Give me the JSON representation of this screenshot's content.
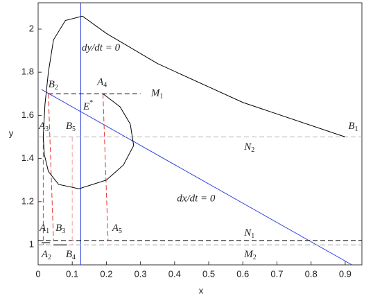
{
  "chart_data": {
    "type": "line",
    "x_label": "x",
    "y_label": "y",
    "xlim": [
      0,
      0.949
    ],
    "ylim": [
      0.907,
      2.122
    ],
    "xticks": [
      0,
      0.1,
      0.2,
      0.3,
      0.4,
      0.5,
      0.6,
      0.7,
      0.8,
      0.9
    ],
    "yticks": [
      1,
      1.2,
      1.4,
      1.6,
      1.8,
      2
    ],
    "series": [
      {
        "color": "#3344dd",
        "dashed": false,
        "x": [
          0.125,
          0.125
        ],
        "values": [
          0.907,
          2.122
        ]
      },
      {
        "color": "#3344dd",
        "dashed": false,
        "x": [
          0.01,
          0.92
        ],
        "values": [
          1.72,
          0.907
        ]
      },
      {
        "color": "#000000",
        "dashed": true,
        "x": [
          0.03,
          0.3
        ],
        "values": [
          1.7,
          1.7
        ]
      },
      {
        "color": "#aaaaaa",
        "dashed": true,
        "x": [
          0,
          0.949
        ],
        "values": [
          1.5,
          1.5
        ]
      },
      {
        "color": "#000000",
        "dashed": true,
        "x": [
          0,
          0.949
        ],
        "values": [
          1.02,
          1.02
        ]
      },
      {
        "color": "#aaaaaa",
        "dashed": true,
        "x": [
          0,
          0.949
        ],
        "values": [
          1.0,
          1.0
        ]
      },
      {
        "color": "#e83030",
        "dashed": true,
        "x": [
          0.03,
          0.045
        ],
        "values": [
          1.7,
          1.02
        ]
      },
      {
        "color": "#e83030",
        "dashed": true,
        "x": [
          0.19,
          0.205
        ],
        "values": [
          1.7,
          1.02
        ]
      },
      {
        "color": "#e83030",
        "dashed": true,
        "x": [
          0.015,
          0.015
        ],
        "values": [
          1.5,
          1.0
        ]
      },
      {
        "color": "#f2a0a0",
        "dashed": true,
        "x": [
          0.1,
          0.1
        ],
        "values": [
          1.5,
          1.0
        ]
      },
      {
        "color": "#000000",
        "dashed": false,
        "x": [
          0.9,
          0.6,
          0.35,
          0.2,
          0.13,
          0.08,
          0.045,
          0.03,
          0.02,
          0.015
        ],
        "values": [
          1.5,
          1.66,
          1.84,
          1.98,
          2.06,
          2.04,
          1.95,
          1.8,
          1.65,
          1.5
        ]
      },
      {
        "color": "#000000",
        "dashed": false,
        "x": [
          0.19,
          0.24,
          0.27,
          0.28,
          0.25,
          0.2,
          0.12,
          0.06,
          0.03,
          0.018,
          0.015
        ],
        "values": [
          1.7,
          1.64,
          1.56,
          1.46,
          1.37,
          1.3,
          1.26,
          1.28,
          1.34,
          1.42,
          1.5
        ]
      },
      {
        "color": "#000000",
        "dashed": false,
        "x": [
          0.01,
          0.035
        ],
        "values": [
          1.01,
          1.01
        ]
      },
      {
        "color": "#000000",
        "dashed": false,
        "x": [
          0.045,
          0.085
        ],
        "values": [
          1.0,
          1.0
        ]
      }
    ],
    "annotations": [
      {
        "text": "dy/dt = 0",
        "x": 0.128,
        "y": 1.91
      },
      {
        "text": "E",
        "sup": "*",
        "x": 0.132,
        "y": 1.637
      },
      {
        "text": "B",
        "sub": "2",
        "x": 0.03,
        "y": 1.74
      },
      {
        "text": "A",
        "sub": "4",
        "x": 0.173,
        "y": 1.75
      },
      {
        "text": "M",
        "sub": "1",
        "x": 0.331,
        "y": 1.7
      },
      {
        "text": "A",
        "sub": "3",
        "x": 0.002,
        "y": 1.547
      },
      {
        "text": "B",
        "sub": "5",
        "x": 0.081,
        "y": 1.547
      },
      {
        "text": "B",
        "sub": "1",
        "x": 0.909,
        "y": 1.547
      },
      {
        "text": "N",
        "sub": "2",
        "x": 0.604,
        "y": 1.45
      },
      {
        "text": "dx/dt = 0",
        "x": 0.407,
        "y": 1.21
      },
      {
        "text": "A",
        "sub": "1",
        "x": 0.004,
        "y": 1.074
      },
      {
        "text": "B",
        "sub": "3",
        "x": 0.051,
        "y": 1.074
      },
      {
        "text": "A",
        "sub": "5",
        "x": 0.217,
        "y": 1.074
      },
      {
        "text": "N",
        "sub": "1",
        "x": 0.604,
        "y": 1.052
      },
      {
        "text": "A",
        "sub": "2",
        "x": 0.01,
        "y": 0.952
      },
      {
        "text": "B",
        "sub": "4",
        "x": 0.081,
        "y": 0.952
      },
      {
        "text": "M",
        "sub": "2",
        "x": 0.604,
        "y": 0.952
      }
    ]
  }
}
